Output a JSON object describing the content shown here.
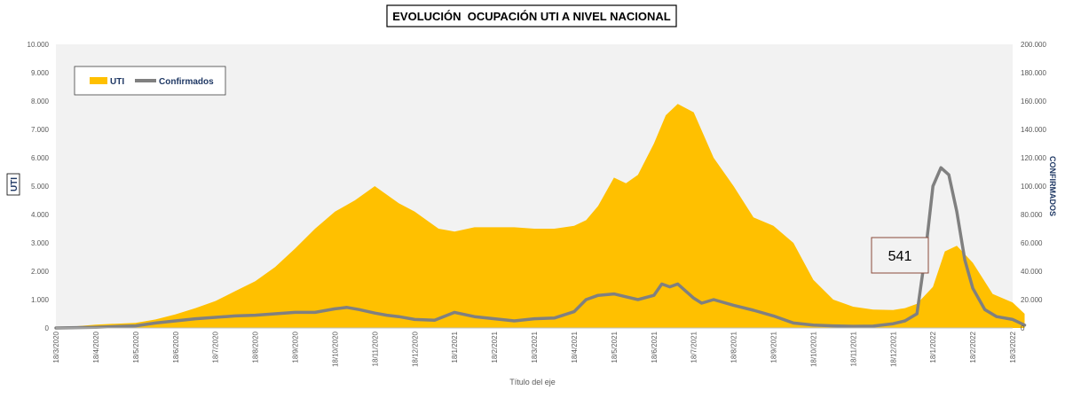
{
  "chart_data": {
    "type": "area",
    "title": "EVOLUCIÓN  OCUPACIÓN UTI A NIVEL NACIONAL",
    "xlabel": "Título del eje",
    "ylabel_left": "UTI",
    "ylabel_right": "CONFIRMADOS",
    "x_tick_labels": [
      "18/3/2020",
      "18/4/2020",
      "18/5/2020",
      "18/6/2020",
      "18/7/2020",
      "18/8/2020",
      "18/9/2020",
      "18/10/2020",
      "18/11/2020",
      "18/12/2020",
      "18/1/2021",
      "18/2/2021",
      "18/3/2021",
      "18/4/2021",
      "18/5/2021",
      "18/6/2021",
      "18/7/2021",
      "18/8/2021",
      "18/9/2021",
      "18/10/2021",
      "18/11/2021",
      "18/12/2021",
      "18/1/2022",
      "18/2/2022",
      "18/3/2022"
    ],
    "y_left_ticks": [
      "0",
      "1.000",
      "2.000",
      "3.000",
      "4.000",
      "5.000",
      "6.000",
      "7.000",
      "8.000",
      "9.000",
      "10.000"
    ],
    "y_right_ticks": [
      "0",
      "20.000",
      "40.000",
      "60.000",
      "80.000",
      "100.000",
      "120.000",
      "140.000",
      "160.000",
      "180.000",
      "200.000"
    ],
    "ylim_left": [
      0,
      10000
    ],
    "ylim_right": [
      0,
      200000
    ],
    "grid": false,
    "legend_position": "top-left",
    "annotation": "541",
    "colors": {
      "uti": "#FFC000",
      "confirmados": "#808080",
      "plot_bg": "#F2F2F2"
    },
    "series": [
      {
        "name": "UTI",
        "axis": "left",
        "style": "area",
        "x": [
          0,
          1,
          1.5,
          2,
          2.5,
          3,
          3.5,
          4,
          4.5,
          5,
          5.5,
          6,
          6.5,
          7,
          7.5,
          8,
          8.3,
          8.6,
          9,
          9.3,
          9.6,
          10,
          10.5,
          11,
          11.5,
          12,
          12.5,
          13,
          13.3,
          13.6,
          14,
          14.3,
          14.6,
          15,
          15.3,
          15.6,
          16,
          16.5,
          17,
          17.5,
          18,
          18.5,
          19,
          19.5,
          20,
          20.5,
          21,
          21.3,
          21.6,
          22,
          22.3,
          22.6,
          23,
          23.5,
          24,
          24.3
        ],
        "values": [
          0,
          120,
          150,
          180,
          300,
          480,
          700,
          950,
          1300,
          1650,
          2150,
          2800,
          3500,
          4100,
          4500,
          5000,
          4700,
          4400,
          4100,
          3800,
          3500,
          3400,
          3550,
          3550,
          3550,
          3500,
          3500,
          3600,
          3800,
          4300,
          5300,
          5100,
          5400,
          6500,
          7500,
          7900,
          7600,
          6000,
          5000,
          3900,
          3600,
          3000,
          1700,
          1000,
          750,
          650,
          630,
          700,
          850,
          1450,
          2700,
          2900,
          2300,
          1200,
          900,
          500
        ]
      },
      {
        "name": "Confirmados",
        "axis": "right",
        "style": "line",
        "x": [
          0,
          1,
          2,
          2.5,
          3,
          3.5,
          4,
          4.5,
          5,
          5.5,
          6,
          6.5,
          7,
          7.3,
          7.6,
          8,
          8.3,
          8.6,
          9,
          9.5,
          10,
          10.5,
          11,
          11.5,
          12,
          12.5,
          13,
          13.3,
          13.6,
          14,
          14.3,
          14.6,
          15,
          15.2,
          15.4,
          15.6,
          15.8,
          16,
          16.2,
          16.5,
          17,
          17.5,
          18,
          18.5,
          19,
          19.5,
          20,
          20.5,
          21,
          21.3,
          21.6,
          21.8,
          22,
          22.2,
          22.4,
          22.6,
          22.8,
          23,
          23.3,
          23.6,
          24,
          24.3
        ],
        "values": [
          0,
          500,
          1500,
          3500,
          5000,
          6500,
          7500,
          8500,
          9000,
          10000,
          11000,
          11000,
          13500,
          14500,
          13000,
          10500,
          9000,
          8000,
          6000,
          5500,
          11000,
          8000,
          6500,
          5000,
          6500,
          7000,
          11500,
          20000,
          23000,
          24000,
          22000,
          20000,
          23000,
          31000,
          29000,
          31000,
          26000,
          21000,
          17500,
          20000,
          16000,
          12500,
          8500,
          3500,
          2000,
          1500,
          1200,
          1300,
          3000,
          5000,
          10000,
          50000,
          100000,
          113000,
          108000,
          82000,
          48000,
          28000,
          13000,
          8000,
          6000,
          2000
        ]
      }
    ]
  }
}
